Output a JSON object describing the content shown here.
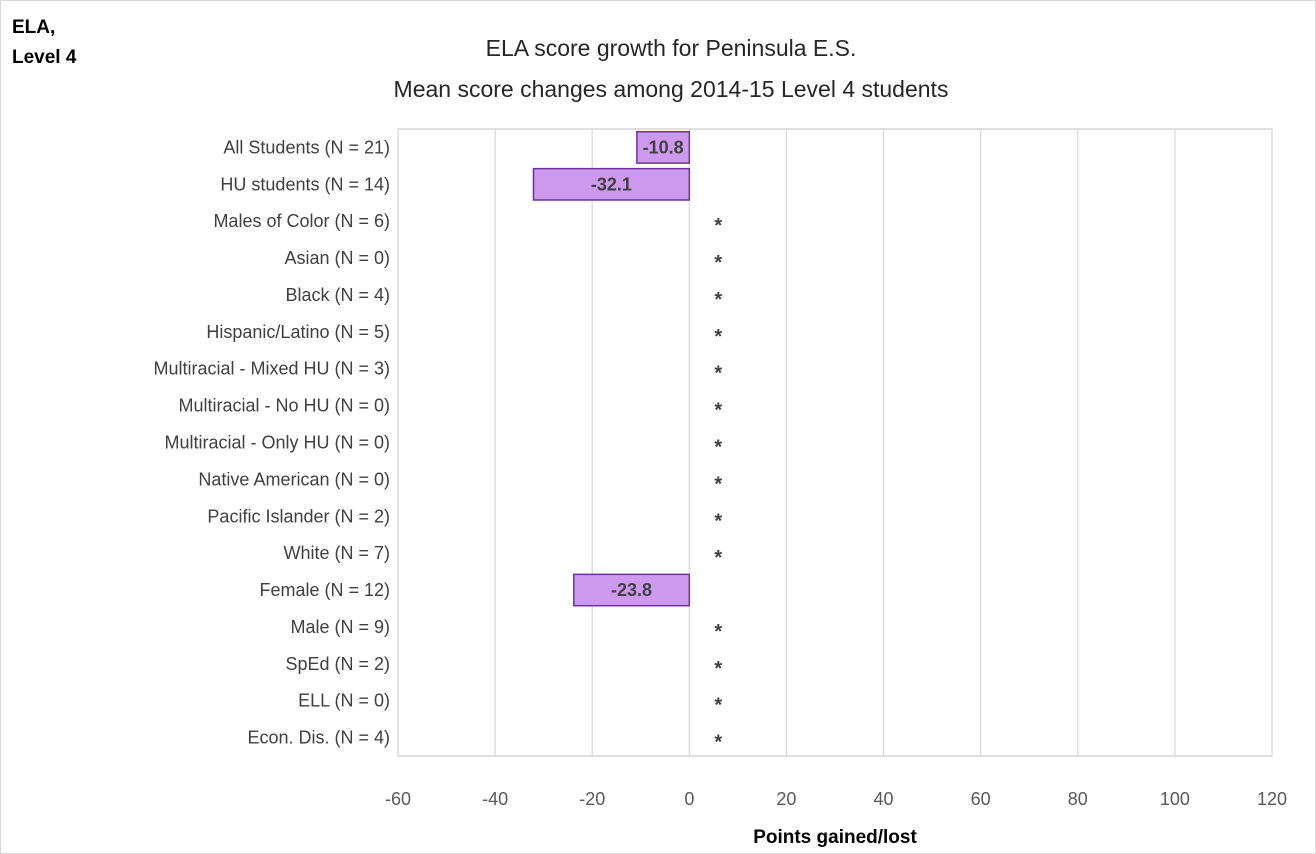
{
  "corner_tag": [
    "ELA,",
    "Level 4"
  ],
  "chart_data": {
    "type": "bar",
    "orientation": "horizontal",
    "title": "ELA score growth for Peninsula E.S.",
    "subtitle": "Mean score changes among 2014-15 Level 4 students",
    "xlabel": "Points gained/lost",
    "xlim": [
      -60,
      120
    ],
    "xticks": [
      -60,
      -40,
      -20,
      0,
      20,
      40,
      60,
      80,
      100,
      120
    ],
    "grid": "vertical",
    "bar_color": "#cc99ee",
    "bar_edge_color": "#7030a0",
    "suppressed_marker": "*",
    "categories": [
      "All Students (N = 21)",
      "HU students (N = 14)",
      "Males of Color (N = 6)",
      "Asian (N = 0)",
      "Black (N = 4)",
      "Hispanic/Latino (N = 5)",
      "Multiracial - Mixed HU (N = 3)",
      "Multiracial - No HU (N = 0)",
      "Multiracial - Only HU (N = 0)",
      "Native American (N = 0)",
      "Pacific Islander (N = 2)",
      "White (N = 7)",
      "Female (N = 12)",
      "Male (N = 9)",
      "SpEd (N = 2)",
      "ELL (N = 0)",
      "Econ. Dis. (N = 4)"
    ],
    "values": [
      -10.8,
      -32.1,
      null,
      null,
      null,
      null,
      null,
      null,
      null,
      null,
      null,
      null,
      -23.8,
      null,
      null,
      null,
      null
    ],
    "data_labels": [
      "-10.8",
      "-32.1",
      "*",
      "*",
      "*",
      "*",
      "*",
      "*",
      "*",
      "*",
      "*",
      "*",
      "-23.8",
      "*",
      "*",
      "*",
      "*"
    ]
  }
}
